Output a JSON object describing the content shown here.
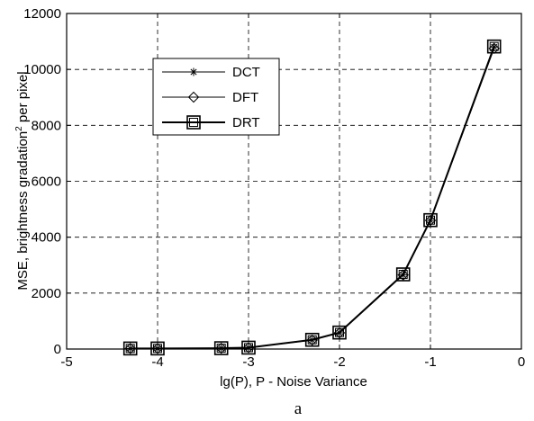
{
  "chart_data": {
    "type": "line",
    "xlabel": "lg(P), P - Noise Variance",
    "ylabel_main": "MSE, brightness gradation",
    "ylabel_sup": "2",
    "ylabel_tail": " per pixel",
    "caption": "a",
    "xlim": [
      -5,
      0
    ],
    "ylim": [
      0,
      12000
    ],
    "xticks": [
      -5,
      -4,
      -3,
      -2,
      -1,
      0
    ],
    "yticks": [
      0,
      2000,
      4000,
      6000,
      8000,
      10000,
      12000
    ],
    "grid": true,
    "legend_position": "upper-left",
    "x": [
      -4.3,
      -4.0,
      -3.3,
      -3.0,
      -2.3,
      -2.0,
      -1.3,
      -1.0,
      -0.3
    ],
    "series": [
      {
        "name": "DCT",
        "marker": "star",
        "values": [
          20,
          20,
          30,
          50,
          320,
          580,
          2650,
          4600,
          10800
        ]
      },
      {
        "name": "DFT",
        "marker": "diamond",
        "values": [
          20,
          20,
          30,
          50,
          320,
          580,
          2650,
          4600,
          10750
        ]
      },
      {
        "name": "DRT",
        "marker": "square",
        "values": [
          20,
          20,
          30,
          50,
          330,
          590,
          2670,
          4610,
          10820
        ]
      }
    ]
  }
}
